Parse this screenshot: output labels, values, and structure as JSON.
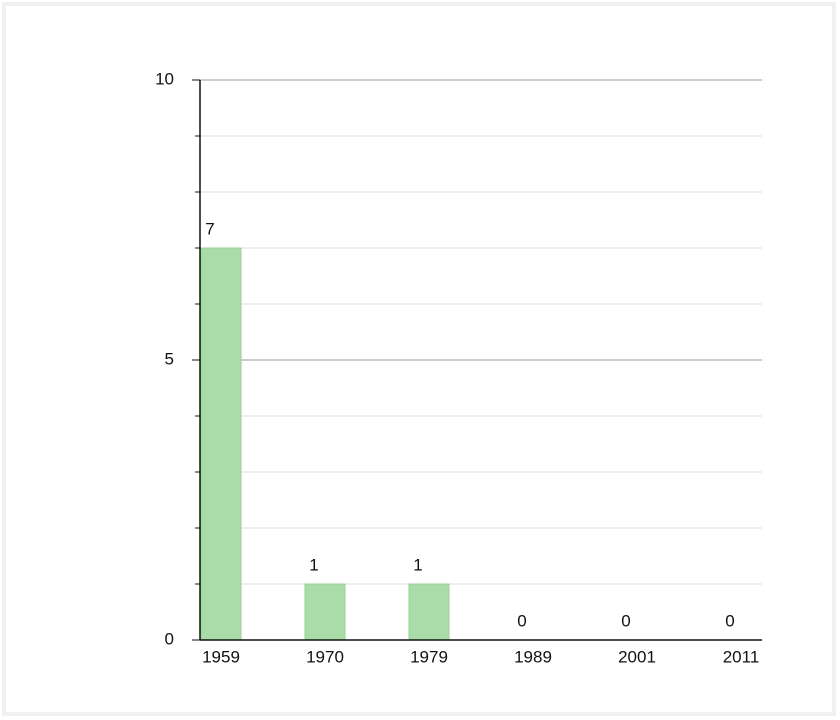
{
  "chart_data": {
    "type": "bar",
    "categories": [
      "1959",
      "1970",
      "1979",
      "1989",
      "2001",
      "2011"
    ],
    "values": [
      7,
      1,
      1,
      0,
      0,
      0
    ],
    "color": "#a9dca6",
    "ylim": [
      0,
      10
    ],
    "yticks": [
      0,
      5,
      10
    ],
    "minor_yticks": [
      1,
      2,
      3,
      4,
      6,
      7,
      8,
      9
    ],
    "grid": true
  }
}
